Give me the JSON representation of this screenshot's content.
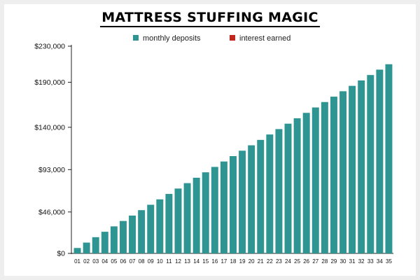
{
  "colors": {
    "deposits": "#2e9593",
    "interest": "#c0281f",
    "axis": "#222222"
  },
  "chart_data": {
    "type": "bar",
    "title": "MATTRESS STUFFING MAGIC",
    "xlabel": "",
    "ylabel": "",
    "legend_position": "top-center",
    "grid": false,
    "ylim": [
      0,
      230000
    ],
    "yticks": [
      {
        "value": 0,
        "label": "$0"
      },
      {
        "value": 46000,
        "label": "$46,000"
      },
      {
        "value": 93000,
        "label": "$93,000"
      },
      {
        "value": 140000,
        "label": "$140,000"
      },
      {
        "value": 190000,
        "label": "$190,000"
      },
      {
        "value": 230000,
        "label": "$230,000"
      }
    ],
    "categories": [
      "01",
      "02",
      "03",
      "04",
      "05",
      "06",
      "07",
      "08",
      "09",
      "10",
      "11",
      "12",
      "13",
      "14",
      "15",
      "16",
      "17",
      "18",
      "19",
      "20",
      "21",
      "22",
      "23",
      "24",
      "25",
      "26",
      "27",
      "28",
      "29",
      "30",
      "31",
      "32",
      "33",
      "34",
      "35"
    ],
    "legend": [
      {
        "name": "monthly deposits",
        "color": "#2e9593"
      },
      {
        "name": "interest earned",
        "color": "#c0281f"
      }
    ],
    "series": [
      {
        "name": "monthly deposits",
        "values": [
          6000,
          12000,
          18000,
          24000,
          30000,
          36000,
          42000,
          48000,
          54000,
          60000,
          66000,
          72000,
          78000,
          84000,
          90000,
          96000,
          102000,
          108000,
          114000,
          120000,
          126000,
          132000,
          138000,
          144000,
          150000,
          156000,
          162000,
          168000,
          174000,
          180000,
          186000,
          192000,
          198000,
          204000,
          210000
        ]
      }
    ]
  }
}
